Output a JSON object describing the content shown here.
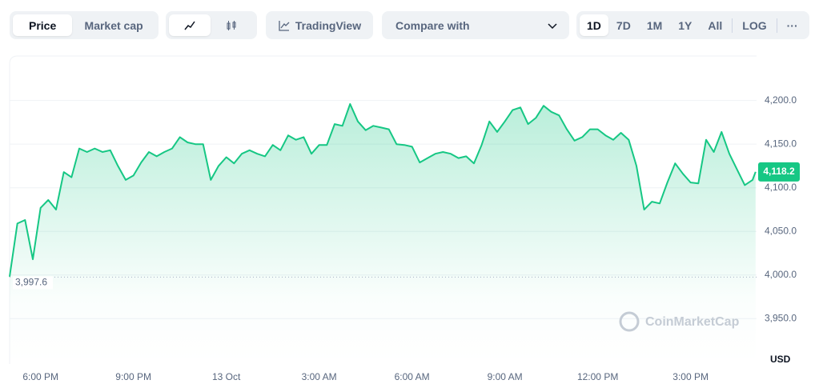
{
  "toolbar": {
    "price": "Price",
    "market_cap": "Market cap",
    "tradingview": "TradingView",
    "compare": "Compare with",
    "ranges": [
      "1D",
      "7D",
      "1M",
      "1Y",
      "All"
    ],
    "log": "LOG"
  },
  "chart_data": {
    "type": "area",
    "color": "#16c784",
    "x": [
      -7,
      -6.75,
      -6.5,
      -6.25,
      -6,
      -5.75,
      -5.5,
      -5.25,
      -5,
      -4.75,
      -4.5,
      -4.25,
      -4,
      -3.75,
      -3.5,
      -3.25,
      -3,
      -2.75,
      -2.5,
      -2.25,
      -2,
      -1.75,
      -1.5,
      -1.25,
      -1,
      -0.75,
      -0.5,
      -0.25,
      0,
      0.25,
      0.5,
      0.75,
      1,
      1.25,
      1.5,
      1.75,
      2,
      2.25,
      2.5,
      2.75,
      3,
      3.25,
      3.5,
      3.75,
      4,
      4.25,
      4.5,
      4.75,
      5,
      5.25,
      5.5,
      5.75,
      6,
      6.25,
      6.5,
      6.75,
      7,
      7.25,
      7.5,
      7.75,
      8,
      8.25,
      8.5,
      8.75,
      9,
      9.25,
      9.5,
      9.75,
      10,
      10.25,
      10.5,
      10.75,
      11,
      11.25,
      11.5,
      11.75,
      12,
      12.25,
      12.5,
      12.75,
      13,
      13.25,
      13.5,
      13.75,
      14,
      14.25,
      14.5,
      14.75,
      15,
      15.25,
      15.5,
      15.75,
      16,
      16.25,
      16.5,
      16.75,
      17,
      17.1
    ],
    "values": [
      3998,
      4059,
      4063,
      4018,
      4077,
      4086,
      4075,
      4118,
      4112,
      4145,
      4141,
      4145,
      4141,
      4143,
      4125,
      4109,
      4114,
      4129,
      4141,
      4136,
      4141,
      4145,
      4158,
      4152,
      4150,
      4150,
      4109,
      4125,
      4135,
      4128,
      4139,
      4143,
      4139,
      4136,
      4149,
      4143,
      4160,
      4155,
      4158,
      4139,
      4149,
      4149,
      4173,
      4171,
      4196,
      4176,
      4166,
      4171,
      4169,
      4167,
      4150,
      4149,
      4147,
      4129,
      4134,
      4139,
      4141,
      4139,
      4134,
      4136,
      4128,
      4149,
      4176,
      4164,
      4176,
      4189,
      4192,
      4173,
      4180,
      4194,
      4187,
      4183,
      4167,
      4154,
      4158,
      4167,
      4167,
      4160,
      4155,
      4163,
      4155,
      4125,
      4075,
      4084,
      4082,
      4106,
      4128,
      4116,
      4106,
      4105,
      4155,
      4141,
      4164,
      4139,
      4121,
      4103,
      4109,
      4118.2
    ],
    "xlim": [
      -7,
      17.13
    ],
    "xticks": [
      {
        "value": -6,
        "label": "6:00 PM"
      },
      {
        "value": -3,
        "label": "9:00 PM"
      },
      {
        "value": 0,
        "label": "13 Oct"
      },
      {
        "value": 3,
        "label": "3:00 AM"
      },
      {
        "value": 6,
        "label": "6:00 AM"
      },
      {
        "value": 9,
        "label": "9:00 AM"
      },
      {
        "value": 12,
        "label": "12:00 PM"
      },
      {
        "value": 15,
        "label": "3:00 PM"
      }
    ],
    "ylim": [
      3898,
      4251
    ],
    "yticks": [
      {
        "value": 3950,
        "label": "3,950.0"
      },
      {
        "value": 4000,
        "label": "4,000.0"
      },
      {
        "value": 4050,
        "label": "4,050.0"
      },
      {
        "value": 4100,
        "label": "4,100.0"
      },
      {
        "value": 4150,
        "label": "4,150.0"
      },
      {
        "value": 4200,
        "label": "4,200.0"
      }
    ],
    "grid": true,
    "reference_line": {
      "value": 3997.6,
      "label": "3,997.6"
    },
    "last_price": {
      "value": 4118.2,
      "label": "4,118.2"
    },
    "y_unit": "USD",
    "watermark": "CoinMarketCap"
  }
}
